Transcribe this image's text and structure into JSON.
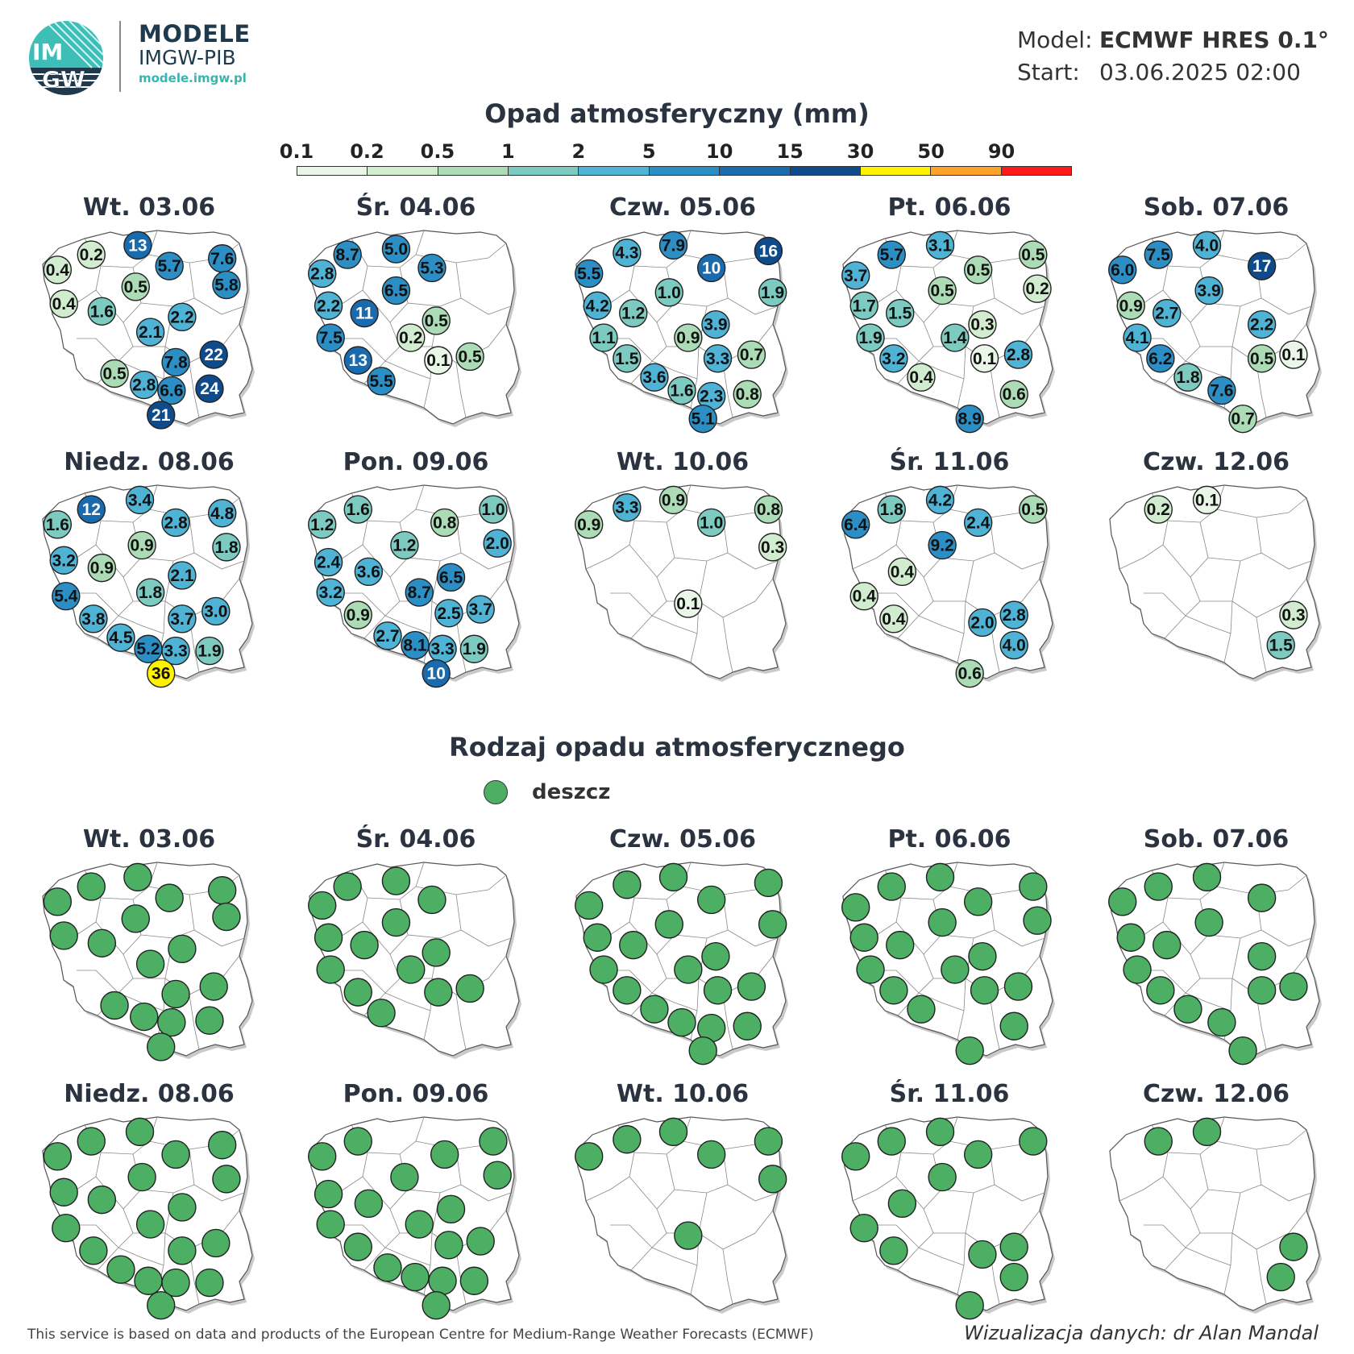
{
  "header": {
    "logo_text_top": "IM",
    "logo_text_bottom": "GW",
    "brand_name": "MODELE",
    "brand_sub": "IMGW-PIB",
    "brand_url": "modele.imgw.pl",
    "model_label": "Model:",
    "model_value": "ECMWF HRES 0.1°",
    "start_label": "Start:",
    "start_value": "03.06.2025 02:00"
  },
  "precip_section": {
    "title": "Opad atmosferyczny (mm)",
    "legend_ticks": [
      "0.1",
      "0.2",
      "0.5",
      "1",
      "2",
      "5",
      "10",
      "15",
      "30",
      "50",
      "90"
    ],
    "legend_colors": [
      "#eaf6e8",
      "#d2ecd0",
      "#acdcb6",
      "#7ccac0",
      "#4fb3d6",
      "#2b8fc6",
      "#1a6aae",
      "#0f4a8a",
      "#fff200",
      "#ffa22a",
      "#ff1a1a"
    ]
  },
  "type_section": {
    "title": "Rodzaj opadu atmosferycznego",
    "legend_label": "deszcz",
    "rain_color": "#4caf63"
  },
  "days": [
    {
      "label": "Wt. 03.06",
      "points": [
        {
          "v": "0.2",
          "x": 0.23,
          "y": 0.12
        },
        {
          "v": "13",
          "x": 0.45,
          "y": 0.07
        },
        {
          "v": "7.6",
          "x": 0.85,
          "y": 0.14
        },
        {
          "v": "0.4",
          "x": 0.07,
          "y": 0.2
        },
        {
          "v": "5.7",
          "x": 0.6,
          "y": 0.18
        },
        {
          "v": "5.8",
          "x": 0.87,
          "y": 0.28
        },
        {
          "v": "0.5",
          "x": 0.44,
          "y": 0.29
        },
        {
          "v": "0.4",
          "x": 0.1,
          "y": 0.38
        },
        {
          "v": "1.6",
          "x": 0.28,
          "y": 0.42
        },
        {
          "v": "2.2",
          "x": 0.66,
          "y": 0.45
        },
        {
          "v": "2.1",
          "x": 0.51,
          "y": 0.53
        },
        {
          "v": "22",
          "x": 0.81,
          "y": 0.65
        },
        {
          "v": "7.8",
          "x": 0.63,
          "y": 0.69
        },
        {
          "v": "0.5",
          "x": 0.34,
          "y": 0.75
        },
        {
          "v": "2.8",
          "x": 0.48,
          "y": 0.81
        },
        {
          "v": "6.6",
          "x": 0.61,
          "y": 0.84
        },
        {
          "v": "24",
          "x": 0.79,
          "y": 0.83
        },
        {
          "v": "21",
          "x": 0.56,
          "y": 0.97
        }
      ]
    },
    {
      "label": "Śr. 04.06",
      "points": [
        {
          "v": "8.7",
          "x": 0.18,
          "y": 0.12
        },
        {
          "v": "5.0",
          "x": 0.41,
          "y": 0.09
        },
        {
          "v": "5.3",
          "x": 0.58,
          "y": 0.19
        },
        {
          "v": "2.8",
          "x": 0.06,
          "y": 0.22
        },
        {
          "v": "6.5",
          "x": 0.41,
          "y": 0.31
        },
        {
          "v": "2.2",
          "x": 0.09,
          "y": 0.39
        },
        {
          "v": "11",
          "x": 0.26,
          "y": 0.43
        },
        {
          "v": "0.5",
          "x": 0.6,
          "y": 0.47
        },
        {
          "v": "7.5",
          "x": 0.1,
          "y": 0.56
        },
        {
          "v": "0.2",
          "x": 0.48,
          "y": 0.56
        },
        {
          "v": "13",
          "x": 0.23,
          "y": 0.68
        },
        {
          "v": "0.1",
          "x": 0.61,
          "y": 0.68
        },
        {
          "v": "0.5",
          "x": 0.76,
          "y": 0.66
        },
        {
          "v": "5.5",
          "x": 0.34,
          "y": 0.79
        }
      ]
    },
    {
      "label": "Czw. 05.06",
      "points": [
        {
          "v": "7.9",
          "x": 0.46,
          "y": 0.07
        },
        {
          "v": "16",
          "x": 0.91,
          "y": 0.1
        },
        {
          "v": "4.3",
          "x": 0.24,
          "y": 0.11
        },
        {
          "v": "10",
          "x": 0.64,
          "y": 0.19
        },
        {
          "v": "5.5",
          "x": 0.06,
          "y": 0.22
        },
        {
          "v": "1.9",
          "x": 0.93,
          "y": 0.32
        },
        {
          "v": "1.0",
          "x": 0.44,
          "y": 0.32
        },
        {
          "v": "4.2",
          "x": 0.1,
          "y": 0.39
        },
        {
          "v": "1.2",
          "x": 0.27,
          "y": 0.43
        },
        {
          "v": "3.9",
          "x": 0.66,
          "y": 0.49
        },
        {
          "v": "1.1",
          "x": 0.13,
          "y": 0.56
        },
        {
          "v": "0.9",
          "x": 0.53,
          "y": 0.56
        },
        {
          "v": "0.7",
          "x": 0.83,
          "y": 0.65
        },
        {
          "v": "1.5",
          "x": 0.24,
          "y": 0.67
        },
        {
          "v": "3.3",
          "x": 0.67,
          "y": 0.67
        },
        {
          "v": "3.6",
          "x": 0.37,
          "y": 0.77
        },
        {
          "v": "1.6",
          "x": 0.5,
          "y": 0.84
        },
        {
          "v": "2.3",
          "x": 0.64,
          "y": 0.87
        },
        {
          "v": "0.8",
          "x": 0.81,
          "y": 0.86
        },
        {
          "v": "5.1",
          "x": 0.6,
          "y": 0.99
        }
      ]
    },
    {
      "label": "Pt. 06.06",
      "points": [
        {
          "v": "3.1",
          "x": 0.46,
          "y": 0.07
        },
        {
          "v": "5.7",
          "x": 0.23,
          "y": 0.12
        },
        {
          "v": "0.5",
          "x": 0.9,
          "y": 0.12
        },
        {
          "v": "3.7",
          "x": 0.06,
          "y": 0.23
        },
        {
          "v": "0.5",
          "x": 0.64,
          "y": 0.2
        },
        {
          "v": "0.2",
          "x": 0.92,
          "y": 0.3
        },
        {
          "v": "0.5",
          "x": 0.47,
          "y": 0.31
        },
        {
          "v": "1.7",
          "x": 0.1,
          "y": 0.39
        },
        {
          "v": "1.5",
          "x": 0.27,
          "y": 0.43
        },
        {
          "v": "0.3",
          "x": 0.66,
          "y": 0.49
        },
        {
          "v": "1.9",
          "x": 0.13,
          "y": 0.56
        },
        {
          "v": "1.4",
          "x": 0.53,
          "y": 0.56
        },
        {
          "v": "2.8",
          "x": 0.83,
          "y": 0.65
        },
        {
          "v": "3.2",
          "x": 0.24,
          "y": 0.67
        },
        {
          "v": "0.1",
          "x": 0.67,
          "y": 0.67
        },
        {
          "v": "0.4",
          "x": 0.37,
          "y": 0.77
        },
        {
          "v": "0.6",
          "x": 0.81,
          "y": 0.86
        },
        {
          "v": "8.9",
          "x": 0.6,
          "y": 0.99
        }
      ]
    },
    {
      "label": "Sob. 07.06",
      "points": [
        {
          "v": "7.5",
          "x": 0.23,
          "y": 0.12
        },
        {
          "v": "4.0",
          "x": 0.46,
          "y": 0.07
        },
        {
          "v": "6.0",
          "x": 0.06,
          "y": 0.2
        },
        {
          "v": "17",
          "x": 0.72,
          "y": 0.18
        },
        {
          "v": "3.9",
          "x": 0.47,
          "y": 0.31
        },
        {
          "v": "0.9",
          "x": 0.1,
          "y": 0.39
        },
        {
          "v": "2.7",
          "x": 0.27,
          "y": 0.43
        },
        {
          "v": "2.2",
          "x": 0.72,
          "y": 0.49
        },
        {
          "v": "4.1",
          "x": 0.13,
          "y": 0.56
        },
        {
          "v": "6.2",
          "x": 0.24,
          "y": 0.67
        },
        {
          "v": "0.5",
          "x": 0.72,
          "y": 0.67
        },
        {
          "v": "0.1",
          "x": 0.87,
          "y": 0.65
        },
        {
          "v": "1.8",
          "x": 0.37,
          "y": 0.77
        },
        {
          "v": "7.6",
          "x": 0.53,
          "y": 0.84
        },
        {
          "v": "0.7",
          "x": 0.63,
          "y": 0.99
        }
      ]
    },
    {
      "label": "Niedz. 08.06",
      "points": [
        {
          "v": "12",
          "x": 0.23,
          "y": 0.12
        },
        {
          "v": "3.4",
          "x": 0.46,
          "y": 0.07
        },
        {
          "v": "4.8",
          "x": 0.85,
          "y": 0.14
        },
        {
          "v": "1.6",
          "x": 0.07,
          "y": 0.2
        },
        {
          "v": "2.8",
          "x": 0.63,
          "y": 0.19
        },
        {
          "v": "1.8",
          "x": 0.87,
          "y": 0.32
        },
        {
          "v": "0.9",
          "x": 0.47,
          "y": 0.31
        },
        {
          "v": "3.2",
          "x": 0.1,
          "y": 0.39
        },
        {
          "v": "0.9",
          "x": 0.28,
          "y": 0.43
        },
        {
          "v": "2.1",
          "x": 0.66,
          "y": 0.47
        },
        {
          "v": "5.4",
          "x": 0.11,
          "y": 0.58
        },
        {
          "v": "1.8",
          "x": 0.51,
          "y": 0.56
        },
        {
          "v": "3.0",
          "x": 0.82,
          "y": 0.66
        },
        {
          "v": "3.8",
          "x": 0.24,
          "y": 0.7
        },
        {
          "v": "3.7",
          "x": 0.66,
          "y": 0.7
        },
        {
          "v": "4.5",
          "x": 0.37,
          "y": 0.8
        },
        {
          "v": "5.2",
          "x": 0.5,
          "y": 0.86
        },
        {
          "v": "3.3",
          "x": 0.63,
          "y": 0.87
        },
        {
          "v": "1.9",
          "x": 0.79,
          "y": 0.87
        },
        {
          "v": "36",
          "x": 0.56,
          "y": 0.99
        }
      ]
    },
    {
      "label": "Pon. 09.06",
      "points": [
        {
          "v": "1.6",
          "x": 0.23,
          "y": 0.12
        },
        {
          "v": "1.0",
          "x": 0.87,
          "y": 0.12
        },
        {
          "v": "1.2",
          "x": 0.06,
          "y": 0.2
        },
        {
          "v": "0.8",
          "x": 0.64,
          "y": 0.19
        },
        {
          "v": "2.0",
          "x": 0.89,
          "y": 0.3
        },
        {
          "v": "1.2",
          "x": 0.45,
          "y": 0.31
        },
        {
          "v": "2.4",
          "x": 0.09,
          "y": 0.4
        },
        {
          "v": "3.6",
          "x": 0.28,
          "y": 0.45
        },
        {
          "v": "6.5",
          "x": 0.67,
          "y": 0.48
        },
        {
          "v": "3.2",
          "x": 0.1,
          "y": 0.56
        },
        {
          "v": "8.7",
          "x": 0.52,
          "y": 0.56
        },
        {
          "v": "0.9",
          "x": 0.23,
          "y": 0.68
        },
        {
          "v": "2.5",
          "x": 0.66,
          "y": 0.67
        },
        {
          "v": "3.7",
          "x": 0.81,
          "y": 0.65
        },
        {
          "v": "2.7",
          "x": 0.37,
          "y": 0.79
        },
        {
          "v": "8.1",
          "x": 0.5,
          "y": 0.84
        },
        {
          "v": "3.3",
          "x": 0.63,
          "y": 0.86
        },
        {
          "v": "1.9",
          "x": 0.78,
          "y": 0.86
        },
        {
          "v": "10",
          "x": 0.6,
          "y": 0.99
        }
      ]
    },
    {
      "label": "Wt. 10.06",
      "points": [
        {
          "v": "3.3",
          "x": 0.24,
          "y": 0.11
        },
        {
          "v": "0.9",
          "x": 0.46,
          "y": 0.07
        },
        {
          "v": "0.8",
          "x": 0.91,
          "y": 0.12
        },
        {
          "v": "0.9",
          "x": 0.06,
          "y": 0.2
        },
        {
          "v": "1.0",
          "x": 0.64,
          "y": 0.19
        },
        {
          "v": "0.3",
          "x": 0.93,
          "y": 0.32
        },
        {
          "v": "0.1",
          "x": 0.53,
          "y": 0.62
        }
      ]
    },
    {
      "label": "Śr. 11.06",
      "points": [
        {
          "v": "1.8",
          "x": 0.23,
          "y": 0.12
        },
        {
          "v": "4.2",
          "x": 0.46,
          "y": 0.07
        },
        {
          "v": "0.5",
          "x": 0.9,
          "y": 0.12
        },
        {
          "v": "6.4",
          "x": 0.06,
          "y": 0.2
        },
        {
          "v": "2.4",
          "x": 0.64,
          "y": 0.19
        },
        {
          "v": "9.2",
          "x": 0.47,
          "y": 0.31
        },
        {
          "v": "0.4",
          "x": 0.28,
          "y": 0.45
        },
        {
          "v": "0.4",
          "x": 0.1,
          "y": 0.58
        },
        {
          "v": "0.4",
          "x": 0.24,
          "y": 0.7
        },
        {
          "v": "2.0",
          "x": 0.66,
          "y": 0.72
        },
        {
          "v": "2.8",
          "x": 0.81,
          "y": 0.68
        },
        {
          "v": "4.0",
          "x": 0.81,
          "y": 0.84
        },
        {
          "v": "0.6",
          "x": 0.6,
          "y": 0.99
        }
      ]
    },
    {
      "label": "Czw. 12.06",
      "points": [
        {
          "v": "0.2",
          "x": 0.23,
          "y": 0.12
        },
        {
          "v": "0.1",
          "x": 0.46,
          "y": 0.07
        },
        {
          "v": "0.3",
          "x": 0.87,
          "y": 0.68
        },
        {
          "v": "1.5",
          "x": 0.81,
          "y": 0.84
        }
      ]
    }
  ],
  "footer": {
    "source": "This service is based on data and products of the European Centre for Medium-Range Weather Forecasts (ECMWF)",
    "credit": "Wizualizacja danych: dr Alan Mandal"
  }
}
